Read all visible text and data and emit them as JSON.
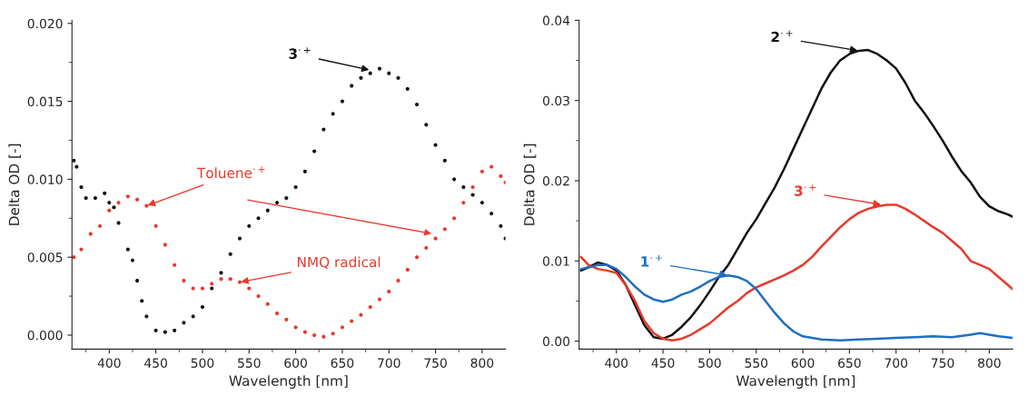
{
  "chart_data": [
    {
      "type": "scatter",
      "xlabel": "Wavelength [nm]",
      "ylabel": "Delta OD [-]",
      "xlim": [
        360,
        825
      ],
      "ylim": [
        -0.0009,
        0.0202
      ],
      "xticks": [
        400,
        450,
        500,
        550,
        600,
        650,
        700,
        750,
        800
      ],
      "yticks": [
        {
          "value": 0,
          "label": "0.000"
        },
        {
          "value": 0.005,
          "label": "0.005"
        },
        {
          "value": 0.01,
          "label": "0.010"
        },
        {
          "value": 0.015,
          "label": "0.015"
        },
        {
          "value": 0.02,
          "label": "0.020"
        }
      ],
      "grid": false,
      "legend": false,
      "marker": "circle",
      "series": [
        {
          "color": "#111111",
          "x": [
            362,
            365,
            370,
            375,
            385,
            395,
            400,
            405,
            410,
            420,
            425,
            430,
            435,
            440,
            450,
            460,
            470,
            480,
            490,
            500,
            510,
            520,
            530,
            540,
            550,
            560,
            570,
            580,
            590,
            600,
            610,
            620,
            630,
            640,
            650,
            660,
            670,
            680,
            690,
            700,
            710,
            720,
            730,
            740,
            750,
            760,
            770,
            780,
            790,
            800,
            810,
            820,
            825
          ],
          "values": [
            0.0112,
            0.0108,
            0.0095,
            0.0088,
            0.0088,
            0.0091,
            0.0085,
            0.0082,
            0.0072,
            0.0055,
            0.0048,
            0.0035,
            0.0022,
            0.0012,
            0.0003,
            0.0002,
            0.0003,
            0.0008,
            0.0012,
            0.0018,
            0.003,
            0.004,
            0.0052,
            0.0062,
            0.007,
            0.0075,
            0.008,
            0.0085,
            0.0088,
            0.0095,
            0.0105,
            0.0118,
            0.0132,
            0.0142,
            0.015,
            0.016,
            0.0165,
            0.0168,
            0.0171,
            0.0168,
            0.0165,
            0.0158,
            0.0148,
            0.0135,
            0.0122,
            0.0112,
            0.01,
            0.0095,
            0.009,
            0.0085,
            0.0078,
            0.007,
            0.0062
          ]
        },
        {
          "color": "#e8392c",
          "x": [
            362,
            370,
            380,
            390,
            400,
            410,
            420,
            430,
            440,
            450,
            460,
            470,
            480,
            490,
            500,
            510,
            520,
            530,
            540,
            550,
            560,
            570,
            580,
            590,
            600,
            610,
            620,
            630,
            640,
            650,
            660,
            670,
            680,
            690,
            700,
            710,
            720,
            730,
            740,
            750,
            760,
            770,
            780,
            790,
            800,
            810,
            820,
            825
          ],
          "values": [
            0.005,
            0.0055,
            0.0065,
            0.007,
            0.008,
            0.0085,
            0.0089,
            0.0087,
            0.0083,
            0.007,
            0.0058,
            0.0045,
            0.0035,
            0.003,
            0.003,
            0.0033,
            0.0036,
            0.0036,
            0.0034,
            0.003,
            0.0025,
            0.002,
            0.0014,
            0.001,
            0.0005,
            0.0002,
            0.0,
            -0.0001,
            0.0001,
            0.0005,
            0.0009,
            0.0013,
            0.0018,
            0.0023,
            0.0028,
            0.0035,
            0.0042,
            0.005,
            0.0056,
            0.0062,
            0.0068,
            0.0075,
            0.0085,
            0.0095,
            0.0105,
            0.0108,
            0.0102,
            0.0098
          ]
        }
      ],
      "annotations": [
        {
          "text": "3$^{·+}$",
          "x": 680,
          "y": 0.017
        },
        {
          "text": "Toluene$^{·+}$",
          "x": 440,
          "y": 0.0083
        },
        {
          "text": "NMQ radical",
          "x": 540,
          "y": 0.0034
        }
      ]
    },
    {
      "type": "line",
      "xlabel": "Wavelength [nm]",
      "ylabel": "Delta OD [-]",
      "xlim": [
        360,
        825
      ],
      "ylim": [
        -0.001,
        0.04
      ],
      "xticks": [
        400,
        450,
        500,
        550,
        600,
        650,
        700,
        750,
        800
      ],
      "yticks": [
        {
          "value": 0,
          "label": "0.00"
        },
        {
          "value": 0.01,
          "label": "0.01"
        },
        {
          "value": 0.02,
          "label": "0.02"
        },
        {
          "value": 0.03,
          "label": "0.03"
        },
        {
          "value": 0.04,
          "label": "0.04"
        }
      ],
      "grid": false,
      "legend": false,
      "line_style": "solid",
      "series": [
        {
          "color": "#111111",
          "x": [
            362,
            370,
            380,
            390,
            400,
            410,
            420,
            430,
            440,
            450,
            460,
            470,
            480,
            490,
            500,
            510,
            520,
            530,
            540,
            550,
            560,
            570,
            580,
            590,
            600,
            610,
            620,
            630,
            640,
            650,
            660,
            670,
            680,
            690,
            700,
            710,
            720,
            730,
            740,
            750,
            760,
            770,
            780,
            790,
            800,
            810,
            820,
            825
          ],
          "values": [
            0.0088,
            0.0092,
            0.0098,
            0.0095,
            0.0088,
            0.007,
            0.0045,
            0.002,
            0.0005,
            0.0003,
            0.0008,
            0.0018,
            0.003,
            0.0045,
            0.0062,
            0.008,
            0.0095,
            0.0115,
            0.0135,
            0.0152,
            0.0172,
            0.0192,
            0.0215,
            0.024,
            0.0265,
            0.029,
            0.0315,
            0.0335,
            0.035,
            0.0358,
            0.0362,
            0.0363,
            0.0358,
            0.035,
            0.034,
            0.0322,
            0.03,
            0.0285,
            0.0268,
            0.025,
            0.023,
            0.0212,
            0.0198,
            0.018,
            0.0168,
            0.0162,
            0.0158,
            0.0155
          ]
        },
        {
          "color": "#e8392c",
          "x": [
            362,
            370,
            380,
            390,
            400,
            410,
            420,
            430,
            440,
            450,
            460,
            470,
            480,
            490,
            500,
            510,
            520,
            530,
            540,
            550,
            560,
            570,
            580,
            590,
            600,
            610,
            620,
            630,
            640,
            650,
            660,
            670,
            680,
            690,
            700,
            710,
            720,
            730,
            740,
            750,
            760,
            770,
            780,
            790,
            800,
            810,
            820,
            825
          ],
          "values": [
            0.0105,
            0.0095,
            0.009,
            0.0088,
            0.0085,
            0.007,
            0.005,
            0.0025,
            0.001,
            0.0003,
            0.0001,
            0.0003,
            0.0008,
            0.0015,
            0.0022,
            0.0032,
            0.0042,
            0.005,
            0.006,
            0.0067,
            0.0072,
            0.0077,
            0.0082,
            0.0088,
            0.0095,
            0.0105,
            0.0118,
            0.013,
            0.0142,
            0.0152,
            0.016,
            0.0165,
            0.0168,
            0.017,
            0.017,
            0.0165,
            0.0158,
            0.015,
            0.0142,
            0.0135,
            0.0125,
            0.0115,
            0.01,
            0.0095,
            0.009,
            0.008,
            0.007,
            0.0065
          ]
        },
        {
          "color": "#1f6fc0",
          "x": [
            362,
            370,
            380,
            390,
            400,
            410,
            420,
            430,
            440,
            450,
            460,
            470,
            480,
            490,
            500,
            510,
            520,
            530,
            540,
            550,
            560,
            570,
            580,
            590,
            600,
            620,
            640,
            660,
            680,
            700,
            720,
            740,
            760,
            780,
            790,
            800,
            810,
            825
          ],
          "values": [
            0.009,
            0.0092,
            0.0095,
            0.0095,
            0.009,
            0.008,
            0.0068,
            0.0058,
            0.0052,
            0.0049,
            0.0052,
            0.0058,
            0.0062,
            0.0068,
            0.0075,
            0.008,
            0.0082,
            0.008,
            0.0075,
            0.0065,
            0.005,
            0.0035,
            0.0022,
            0.0012,
            0.0006,
            0.0002,
            0.0001,
            0.0002,
            0.0003,
            0.0004,
            0.0005,
            0.0006,
            0.0005,
            0.0008,
            0.001,
            0.0008,
            0.0006,
            0.0004
          ]
        }
      ],
      "annotations": [
        {
          "text": "2$^{·+}$",
          "x": 660,
          "y": 0.0362
        },
        {
          "text": "3$^{·+}$",
          "x": 685,
          "y": 0.017
        },
        {
          "text": "1$^{·+}$",
          "x": 520,
          "y": 0.0082
        }
      ]
    }
  ]
}
